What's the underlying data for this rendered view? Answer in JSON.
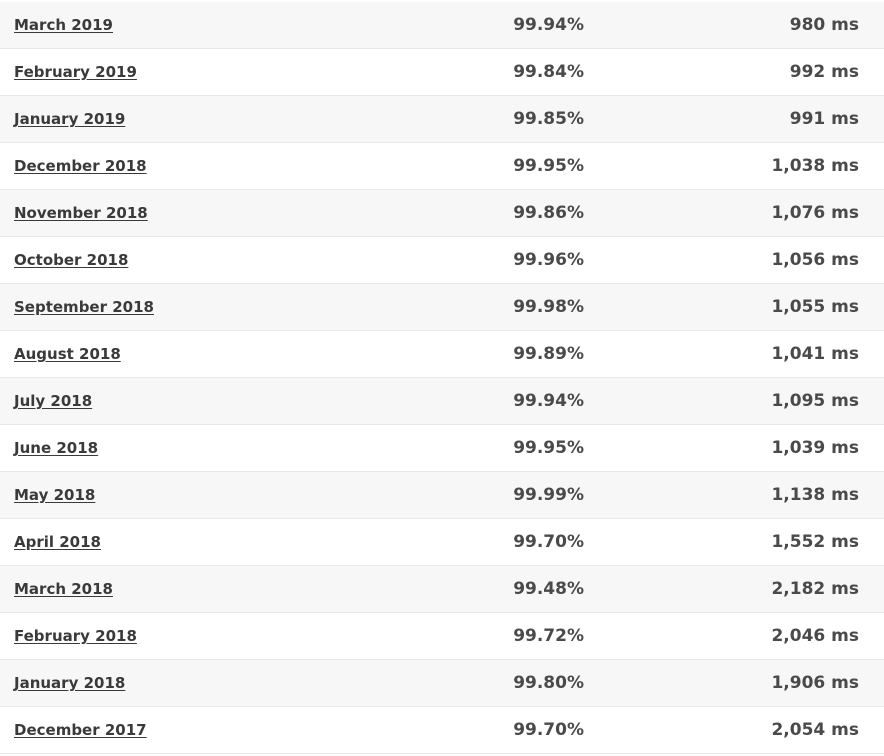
{
  "rows": [
    {
      "month": "March 2019",
      "uptime": "99.94%",
      "response": "980 ms"
    },
    {
      "month": "February 2019",
      "uptime": "99.84%",
      "response": "992 ms"
    },
    {
      "month": "January 2019",
      "uptime": "99.85%",
      "response": "991 ms"
    },
    {
      "month": "December 2018",
      "uptime": "99.95%",
      "response": "1,038 ms"
    },
    {
      "month": "November 2018",
      "uptime": "99.86%",
      "response": "1,076 ms"
    },
    {
      "month": "October 2018",
      "uptime": "99.96%",
      "response": "1,056 ms"
    },
    {
      "month": "September 2018",
      "uptime": "99.98%",
      "response": "1,055 ms"
    },
    {
      "month": "August 2018",
      "uptime": "99.89%",
      "response": "1,041 ms"
    },
    {
      "month": "July 2018",
      "uptime": "99.94%",
      "response": "1,095 ms"
    },
    {
      "month": "June 2018",
      "uptime": "99.95%",
      "response": "1,039 ms"
    },
    {
      "month": "May 2018",
      "uptime": "99.99%",
      "response": "1,138 ms"
    },
    {
      "month": "April 2018",
      "uptime": "99.70%",
      "response": "1,552 ms"
    },
    {
      "month": "March 2018",
      "uptime": "99.48%",
      "response": "2,182 ms"
    },
    {
      "month": "February 2018",
      "uptime": "99.72%",
      "response": "2,046 ms"
    },
    {
      "month": "January 2018",
      "uptime": "99.80%",
      "response": "1,906 ms"
    },
    {
      "month": "December 2017",
      "uptime": "99.70%",
      "response": "2,054 ms"
    }
  ]
}
